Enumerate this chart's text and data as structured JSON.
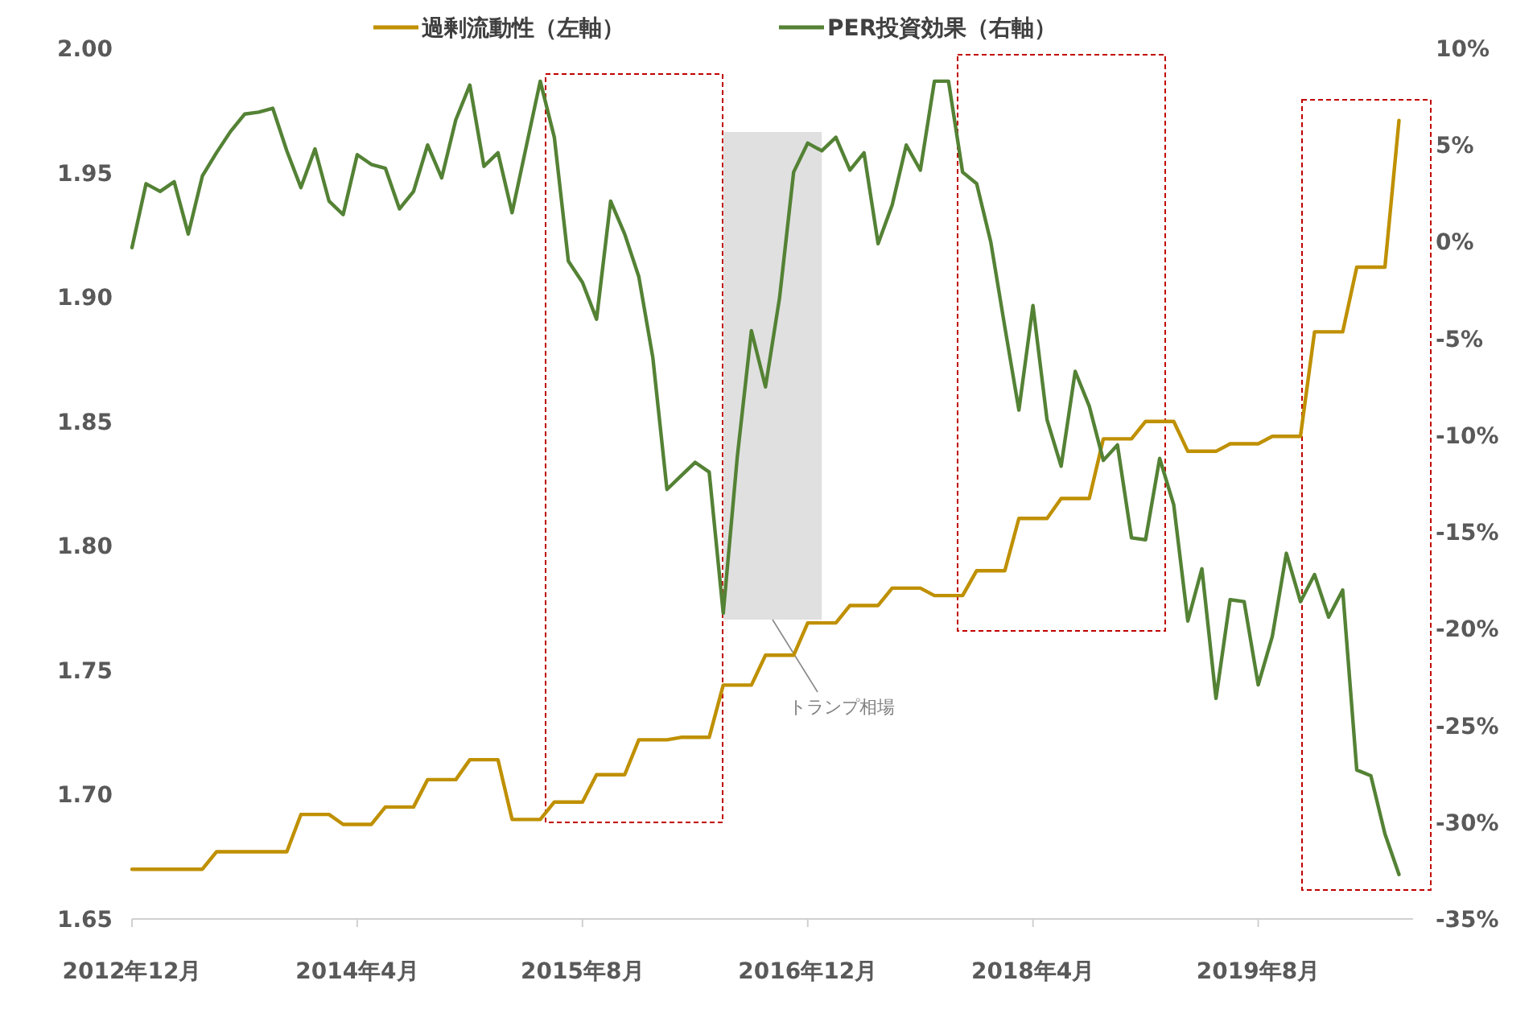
{
  "chart_data": {
    "type": "line",
    "x": [
      "2012-12",
      "2013-01",
      "2013-02",
      "2013-03",
      "2013-04",
      "2013-05",
      "2013-06",
      "2013-07",
      "2013-08",
      "2013-09",
      "2013-10",
      "2013-11",
      "2013-12",
      "2014-01",
      "2014-02",
      "2014-03",
      "2014-04",
      "2014-05",
      "2014-06",
      "2014-07",
      "2014-08",
      "2014-09",
      "2014-10",
      "2014-11",
      "2014-12",
      "2015-01",
      "2015-02",
      "2015-03",
      "2015-04",
      "2015-05",
      "2015-06",
      "2015-07",
      "2015-08",
      "2015-09",
      "2015-10",
      "2015-11",
      "2015-12",
      "2016-01",
      "2016-02",
      "2016-03",
      "2016-04",
      "2016-05",
      "2016-06",
      "2016-07",
      "2016-08",
      "2016-09",
      "2016-10",
      "2016-11",
      "2016-12",
      "2017-01",
      "2017-02",
      "2017-03",
      "2017-04",
      "2017-05",
      "2017-06",
      "2017-07",
      "2017-08",
      "2017-09",
      "2017-10",
      "2017-11",
      "2017-12",
      "2018-01",
      "2018-02",
      "2018-03",
      "2018-04",
      "2018-05",
      "2018-06",
      "2018-07",
      "2018-08",
      "2018-09",
      "2018-10",
      "2018-11",
      "2018-12",
      "2019-01",
      "2019-02",
      "2019-03",
      "2019-04",
      "2019-05",
      "2019-06",
      "2019-07",
      "2019-08",
      "2019-09",
      "2019-10",
      "2019-11",
      "2019-12",
      "2020-01",
      "2020-02",
      "2020-03",
      "2020-04",
      "2020-05",
      "2020-06"
    ],
    "series": [
      {
        "name": "過剰流動性（左軸）",
        "color": "#bf9000",
        "values": [
          1.67,
          1.67,
          1.67,
          1.67,
          1.67,
          1.67,
          1.677,
          1.677,
          1.677,
          1.677,
          1.677,
          1.677,
          1.692,
          1.692,
          1.692,
          1.688,
          1.688,
          1.688,
          1.695,
          1.695,
          1.695,
          1.706,
          1.706,
          1.706,
          1.714,
          1.714,
          1.714,
          1.69,
          1.69,
          1.69,
          1.697,
          1.697,
          1.697,
          1.708,
          1.708,
          1.708,
          1.722,
          1.722,
          1.722,
          1.723,
          1.723,
          1.723,
          1.744,
          1.744,
          1.744,
          1.756,
          1.756,
          1.756,
          1.769,
          1.769,
          1.769,
          1.776,
          1.776,
          1.776,
          1.783,
          1.783,
          1.783,
          1.78,
          1.78,
          1.78,
          1.79,
          1.79,
          1.79,
          1.811,
          1.811,
          1.811,
          1.819,
          1.819,
          1.819,
          1.843,
          1.843,
          1.843,
          1.85,
          1.85,
          1.85,
          1.838,
          1.838,
          1.838,
          1.841,
          1.841,
          1.841,
          1.844,
          1.844,
          1.844,
          1.886,
          1.886,
          1.886,
          1.912,
          1.912,
          1.912,
          1.971
        ]
      },
      {
        "name": "PER投資効果（右軸）",
        "color": "#548235",
        "axis": "y2",
        "values": [
          -0.3,
          3.0,
          2.6,
          3.1,
          0.4,
          3.4,
          4.6,
          5.7,
          6.6,
          6.7,
          6.9,
          4.7,
          2.8,
          4.8,
          2.1,
          1.4,
          4.5,
          4.0,
          3.8,
          1.7,
          2.6,
          5.0,
          3.3,
          6.3,
          8.1,
          3.9,
          4.6,
          1.5,
          4.9,
          8.3,
          5.4,
          -1.0,
          -2.1,
          -4.0,
          2.1,
          0.4,
          -1.8,
          -6.0,
          -12.8,
          -12.1,
          -11.4,
          -11.9,
          -19.2,
          -11.1,
          -4.6,
          -7.5,
          -2.9,
          3.6,
          5.1,
          4.7,
          5.4,
          3.7,
          4.6,
          -0.1,
          1.9,
          5.0,
          3.7,
          8.3,
          8.3,
          3.6,
          3.0,
          0.0,
          -4.4,
          -8.7,
          -3.3,
          -9.2,
          -11.6,
          -6.7,
          -8.5,
          -11.3,
          -10.5,
          -15.3,
          -15.4,
          -11.2,
          -13.6,
          -19.6,
          -16.9,
          -23.6,
          -18.5,
          -18.6,
          -22.9,
          -20.4,
          -16.1,
          -18.6,
          -17.2,
          -19.4,
          -18.0,
          -27.3,
          -27.6,
          -30.6,
          -32.7
        ]
      }
    ],
    "xlim": [
      "2012-12",
      "2020-07"
    ],
    "xticks": [
      {
        "value": "2012-12",
        "label": "2012年12月"
      },
      {
        "value": "2014-04",
        "label": "2014年4月"
      },
      {
        "value": "2015-08",
        "label": "2015年8月"
      },
      {
        "value": "2016-12",
        "label": "2016年12月"
      },
      {
        "value": "2018-04",
        "label": "2018年4月"
      },
      {
        "value": "2019-08",
        "label": "2019年8月"
      }
    ],
    "ylim": [
      1.65,
      2.0
    ],
    "yticks": [
      {
        "value": 1.65,
        "label": "1.65"
      },
      {
        "value": 1.7,
        "label": "1.70"
      },
      {
        "value": 1.75,
        "label": "1.75"
      },
      {
        "value": 1.8,
        "label": "1.80"
      },
      {
        "value": 1.85,
        "label": "1.85"
      },
      {
        "value": 1.9,
        "label": "1.90"
      },
      {
        "value": 1.95,
        "label": "1.95"
      },
      {
        "value": 2.0,
        "label": "2.00"
      }
    ],
    "y2lim": [
      -35,
      10
    ],
    "y2ticks": [
      {
        "value": -35,
        "label": "-35%"
      },
      {
        "value": -30,
        "label": "-30%"
      },
      {
        "value": -25,
        "label": "-25%"
      },
      {
        "value": -20,
        "label": "-20%"
      },
      {
        "value": -15,
        "label": "-15%"
      },
      {
        "value": -10,
        "label": "-10%"
      },
      {
        "value": -5,
        "label": "-5%"
      },
      {
        "value": 0,
        "label": "0%"
      },
      {
        "value": 5,
        "label": "5%"
      },
      {
        "value": 10,
        "label": "10%"
      }
    ],
    "bands": [
      {
        "axis": "x",
        "from": "2016-06",
        "to": "2017-01",
        "label": "トランプ相場",
        "color": "#e0e0e0"
      }
    ],
    "legend": "top",
    "grid": false,
    "marker": "none",
    "line_style": "solid"
  }
}
